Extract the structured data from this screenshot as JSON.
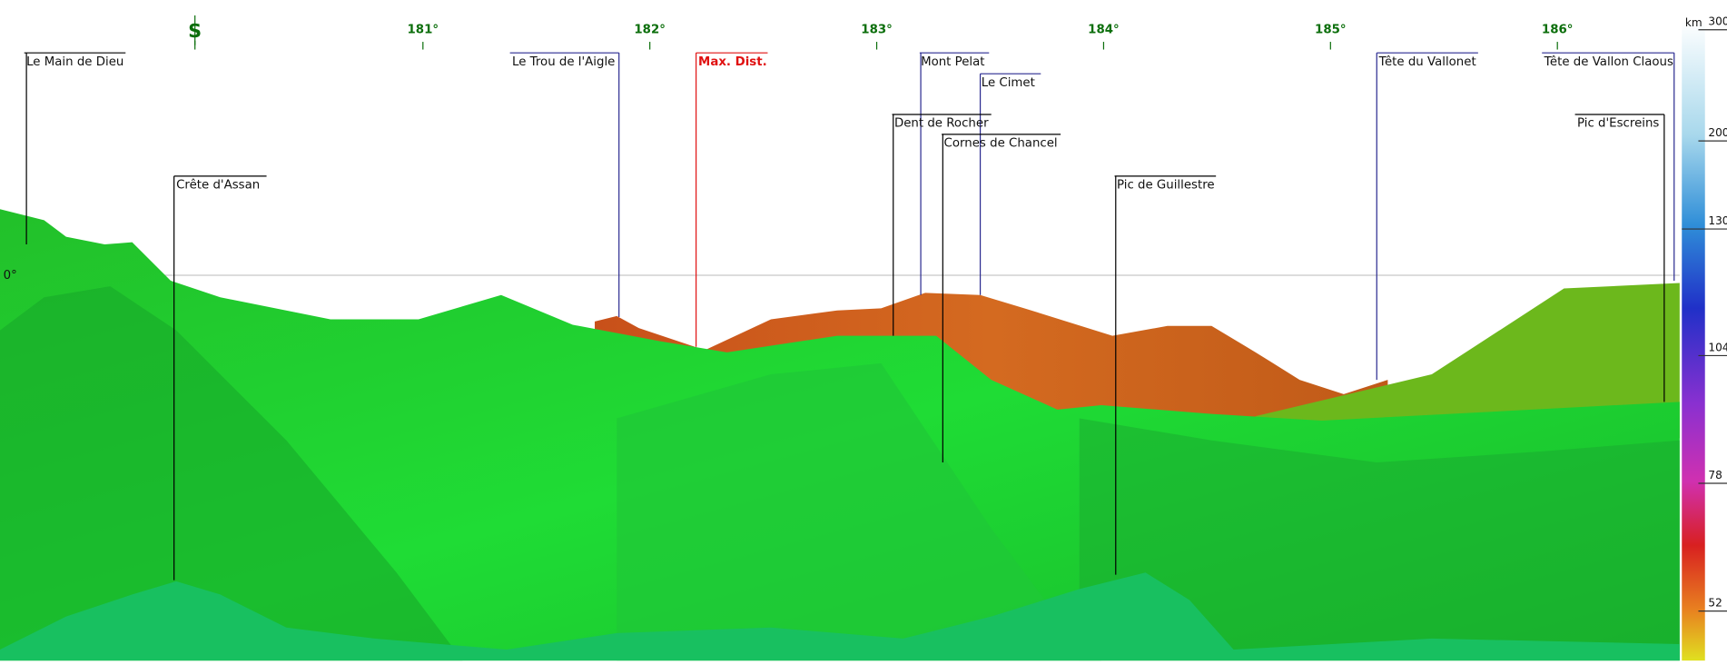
{
  "compass": [
    "S",
    "181°",
    "182°",
    "183°",
    "184°",
    "185°",
    "186°"
  ],
  "horizon_label": "0°",
  "peaks": [
    {
      "label": "Le Main de Dieu"
    },
    {
      "label": "Le Trou de l'Aigle"
    },
    {
      "label": "Max. Dist."
    },
    {
      "label": "Mont Pelat"
    },
    {
      "label": "Le Cimet"
    },
    {
      "label": "Dent de Rocher"
    },
    {
      "label": "Cornes de Chancel"
    },
    {
      "label": "Crête d'Assan"
    },
    {
      "label": "Pic de Guillestre"
    },
    {
      "label": "Tête du Vallonet"
    },
    {
      "label": "Tête de Vallon Claous"
    },
    {
      "label": "Pic d'Escreins"
    }
  ],
  "color_scale": {
    "unit": "km",
    "labels": [
      "300",
      "200",
      "130",
      "104",
      "78",
      "52"
    ]
  }
}
